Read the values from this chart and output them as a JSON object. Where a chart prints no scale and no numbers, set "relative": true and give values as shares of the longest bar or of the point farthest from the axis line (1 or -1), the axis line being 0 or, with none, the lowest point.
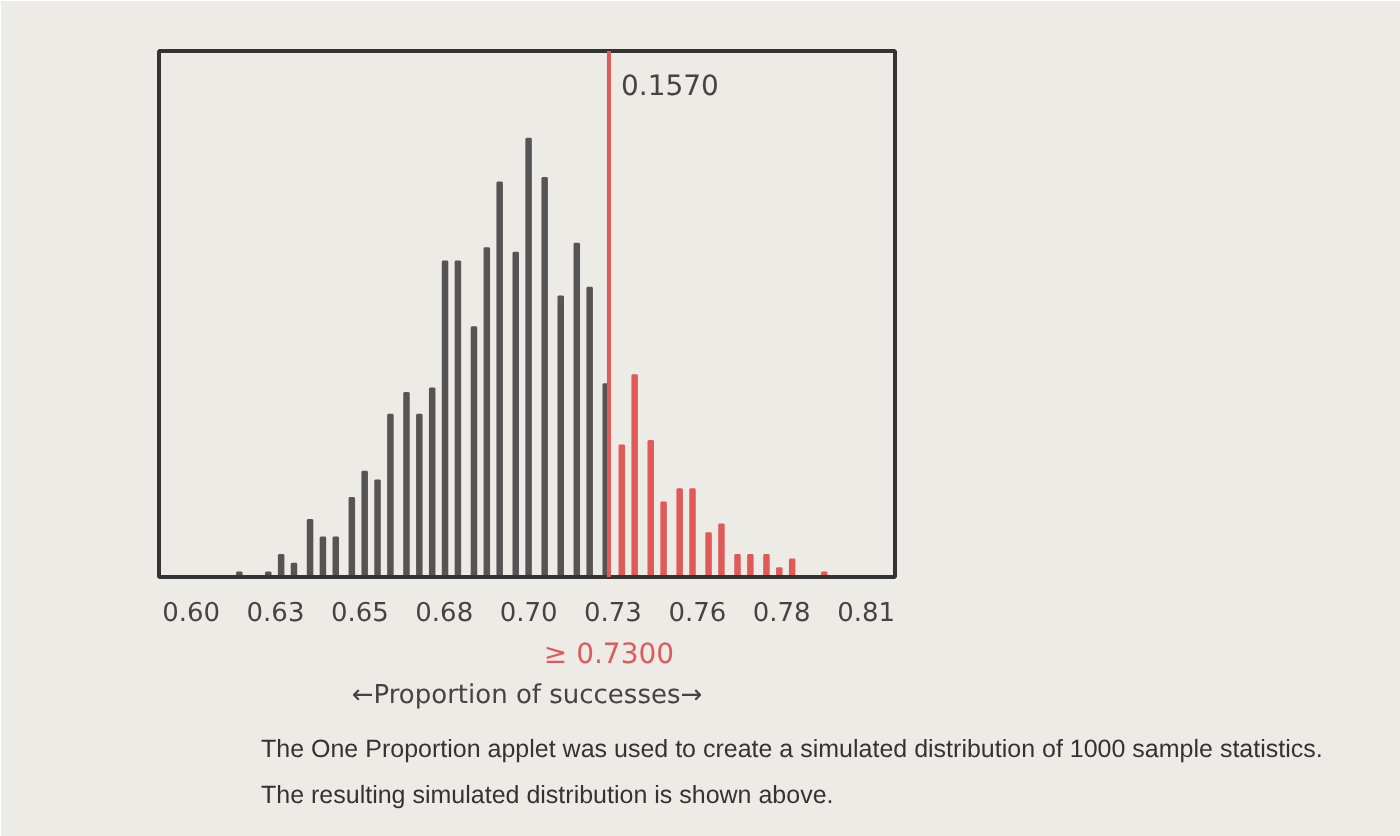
{
  "chart_data": {
    "type": "bar",
    "relative": true,
    "xlabel": "←Proportion of successes→",
    "x": [
      0.615,
      0.624,
      0.628,
      0.632,
      0.637,
      0.641,
      0.645,
      0.65,
      0.654,
      0.658,
      0.662,
      0.667,
      0.671,
      0.675,
      0.679,
      0.683,
      0.688,
      0.692,
      0.696,
      0.701,
      0.705,
      0.71,
      0.715,
      0.72,
      0.724,
      0.729,
      0.734,
      0.738,
      0.743,
      0.747,
      0.752,
      0.756,
      0.761,
      0.765,
      0.77,
      0.774,
      0.779,
      0.783,
      0.787,
      0.797
    ],
    "values": [
      0.01,
      0.01,
      0.05,
      0.03,
      0.13,
      0.09,
      0.09,
      0.18,
      0.24,
      0.22,
      0.37,
      0.42,
      0.37,
      0.43,
      0.72,
      0.72,
      0.57,
      0.75,
      0.9,
      0.74,
      1,
      0.91,
      0.64,
      0.76,
      0.66,
      0.44,
      0.3,
      0.46,
      0.31,
      0.17,
      0.2,
      0.2,
      0.1,
      0.12,
      0.05,
      0.05,
      0.05,
      0.02,
      0.04,
      0.01
    ],
    "colors": [
      "#555555",
      "#555555",
      "#555555",
      "#555555",
      "#555555",
      "#555555",
      "#555555",
      "#555555",
      "#555555",
      "#555555",
      "#555555",
      "#555555",
      "#555555",
      "#555555",
      "#555555",
      "#555555",
      "#555555",
      "#555555",
      "#555555",
      "#555555",
      "#555555",
      "#555555",
      "#555555",
      "#555555",
      "#555555",
      "#555555",
      "#e05a5a",
      "#e05a5a",
      "#e05a5a",
      "#e05a5a",
      "#e05a5a",
      "#e05a5a",
      "#e05a5a",
      "#e05a5a",
      "#e05a5a",
      "#e05a5a",
      "#e05a5a",
      "#e05a5a",
      "#e05a5a",
      "#e05a5a"
    ],
    "xlim": [
      0.59,
      0.819
    ],
    "xticks": [
      {
        "value": 0.6,
        "label": "0.60"
      },
      {
        "value": 0.62625,
        "label": "0.63"
      },
      {
        "value": 0.6525,
        "label": "0.65"
      },
      {
        "value": 0.67875,
        "label": "0.68"
      },
      {
        "value": 0.705,
        "label": "0.70"
      },
      {
        "value": 0.73125,
        "label": "0.73"
      },
      {
        "value": 0.7575,
        "label": "0.76"
      },
      {
        "value": 0.78375,
        "label": "0.78"
      },
      {
        "value": 0.81,
        "label": "0.81"
      }
    ],
    "grid": false,
    "ref_lines": [
      {
        "axis": "x",
        "value": 0.73,
        "color": "#e05a5a"
      }
    ],
    "annotations": [
      {
        "text": "0.1570",
        "x": 0.73
      },
      "≥ 0.7300",
      "The One Proportion applet was used to create a simulated distribution of 1000 sample statistics.",
      "The resulting simulated distribution is shown above."
    ]
  }
}
